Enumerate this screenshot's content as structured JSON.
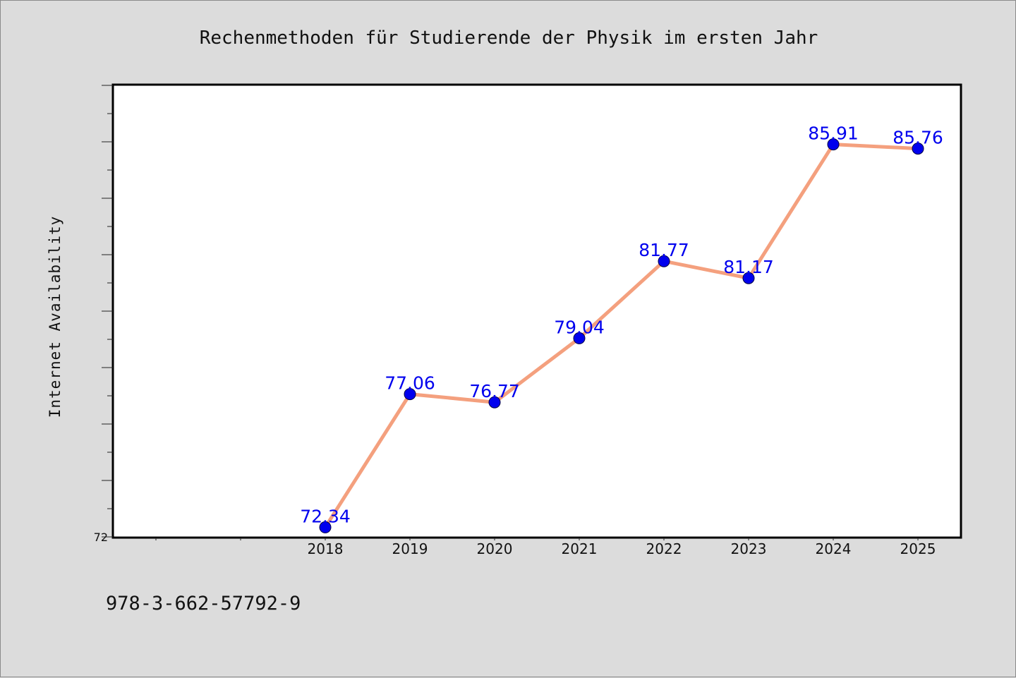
{
  "chart_data": {
    "type": "line",
    "title": "Rechenmethoden für Studierende der Physik im ersten Jahr",
    "xlabel": "",
    "ylabel": "Internet Availability",
    "x": [
      "2018",
      "2019",
      "2020",
      "2021",
      "2022",
      "2023",
      "2024",
      "2025"
    ],
    "series": [
      {
        "values": [
          72.34,
          77.06,
          76.77,
          79.04,
          81.77,
          81.17,
          85.91,
          85.76
        ],
        "data_labels": [
          "72.34",
          "77.06",
          "76.77",
          "79.04",
          "81.77",
          "81.17",
          "85.91",
          "85.76"
        ]
      }
    ],
    "ylim": [
      72,
      88
    ],
    "yticks_labeled": [
      "72"
    ],
    "line_color": "#f4a07e",
    "marker_color": "#0000ee",
    "label_color": "#0000ee",
    "grid": false,
    "legend": "none"
  },
  "footer": {
    "isbn": "978-3-662-57792-9"
  }
}
